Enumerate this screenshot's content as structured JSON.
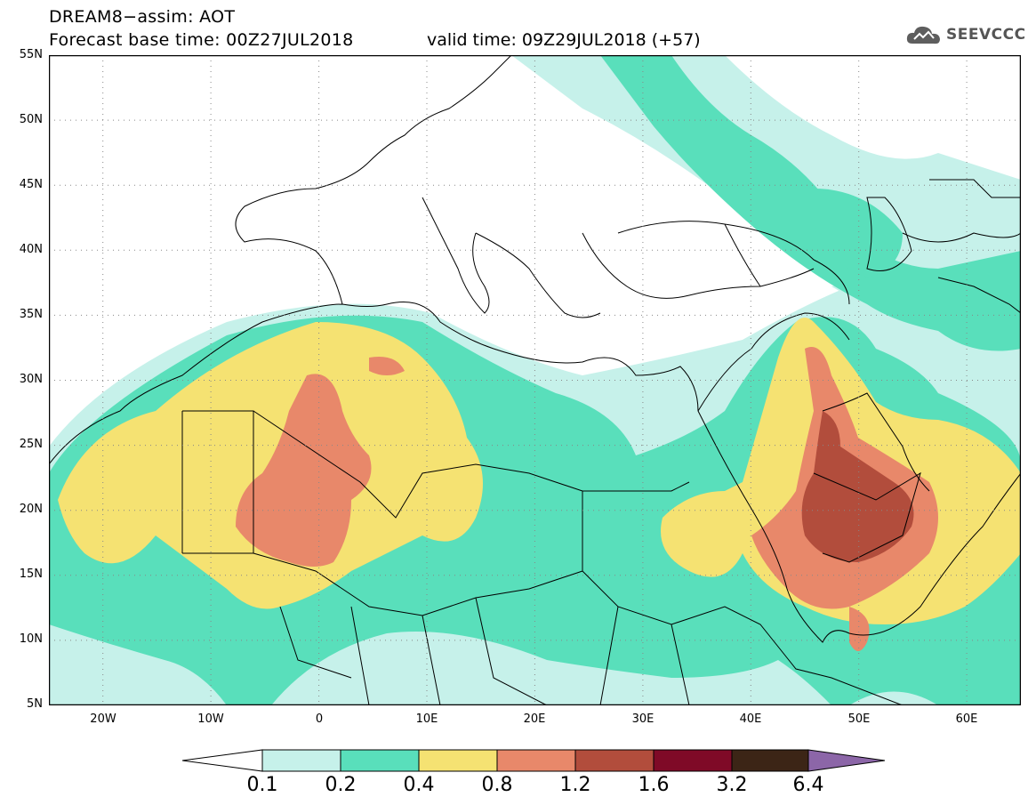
{
  "header": {
    "title_line1": "DREAM8−assim: AOT",
    "title_line2": "Forecast base time: 00Z27JUL2018",
    "valid_time": "valid time: 09Z29JUL2018 (+57)",
    "logo_text": "SEEVCCC",
    "logo_icon": "cloud-icon"
  },
  "map": {
    "lat_labels": [
      "55N",
      "50N",
      "45N",
      "40N",
      "35N",
      "30N",
      "25N",
      "20N",
      "15N",
      "10N",
      "5N"
    ],
    "lat_values": [
      55,
      50,
      45,
      40,
      35,
      30,
      25,
      20,
      15,
      10,
      5
    ],
    "lon_labels": [
      "20W",
      "10W",
      "0",
      "10E",
      "20E",
      "30E",
      "40E",
      "50E",
      "60E"
    ],
    "lon_values": [
      -20,
      -10,
      0,
      10,
      20,
      30,
      40,
      50,
      60
    ],
    "lon_range": [
      -25,
      65
    ],
    "lat_range": [
      5,
      55
    ],
    "grid": "dotted"
  },
  "colorbar": {
    "labels": [
      "0.1",
      "0.2",
      "0.4",
      "0.8",
      "1.2",
      "1.6",
      "3.2",
      "6.4"
    ],
    "colors": [
      "#ffffff",
      "#c6f1ea",
      "#59dfbb",
      "#f5e272",
      "#e8886a",
      "#b24d3c",
      "#7f0a27",
      "#3c2516",
      "#8c66a8"
    ]
  },
  "chart_data": {
    "type": "heatmap",
    "variable": "AOT",
    "levels": [
      0.1,
      0.2,
      0.4,
      0.8,
      1.2,
      1.6,
      3.2,
      6.4
    ]
  }
}
